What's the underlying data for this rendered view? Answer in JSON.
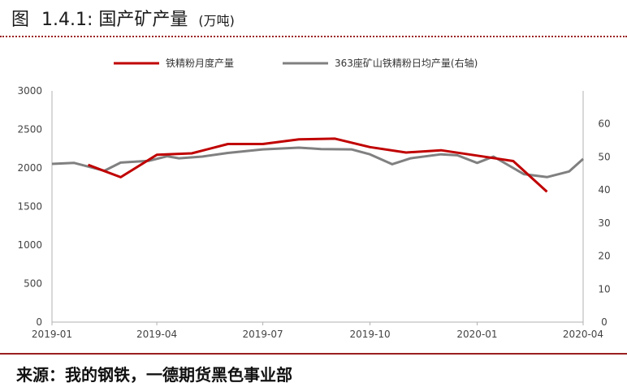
{
  "figure": {
    "label": "图",
    "number": "1.4.1:",
    "title": "国产矿产量",
    "unit": "(万吨)"
  },
  "source": "来源：我的钢铁，一德期货黑色事业部",
  "chart_data": {
    "type": "line",
    "x": [
      "2019-02",
      "2019-03",
      "2019-04",
      "2019-05",
      "2019-06",
      "2019-07",
      "2019-08",
      "2019-09",
      "2019-10",
      "2019-11",
      "2019-12",
      "2020-01",
      "2020-02",
      "2020-03"
    ],
    "x_ticks": [
      "2019-01",
      "2019-04",
      "2019-07",
      "2019-10",
      "2020-01",
      "2020-04"
    ],
    "x_range": [
      "2019-01-01",
      "2020-04-01"
    ],
    "y_left": {
      "min": 0,
      "max": 3000,
      "ticks": [
        0,
        500,
        1000,
        1500,
        2000,
        2500,
        3000
      ]
    },
    "y_right": {
      "min": 0,
      "max": 70,
      "ticks": [
        0,
        10,
        20,
        30,
        40,
        50,
        60
      ]
    },
    "series": [
      {
        "name": "铁精粉月度产量",
        "axis": "left",
        "color": "#c00000",
        "points": [
          [
            "2019-02-01",
            2040
          ],
          [
            "2019-03-01",
            1880
          ],
          [
            "2019-04-01",
            2170
          ],
          [
            "2019-05-01",
            2190
          ],
          [
            "2019-06-01",
            2310
          ],
          [
            "2019-07-01",
            2310
          ],
          [
            "2019-08-01",
            2370
          ],
          [
            "2019-09-01",
            2380
          ],
          [
            "2019-10-01",
            2270
          ],
          [
            "2019-11-01",
            2200
          ],
          [
            "2019-12-01",
            2230
          ],
          [
            "2020-01-01",
            2160
          ],
          [
            "2020-02-01",
            2090
          ],
          [
            "2020-03-01",
            1690
          ]
        ]
      },
      {
        "name": "363座矿山铁精粉日均产量(右轴)",
        "axis": "right",
        "color": "#808080",
        "points": [
          [
            "2019-01-01",
            47.9
          ],
          [
            "2019-01-20",
            48.2
          ],
          [
            "2019-02-15",
            45.8
          ],
          [
            "2019-03-01",
            48.3
          ],
          [
            "2019-03-25",
            48.8
          ],
          [
            "2019-04-10",
            50.2
          ],
          [
            "2019-04-20",
            49.6
          ],
          [
            "2019-05-10",
            50.1
          ],
          [
            "2019-06-01",
            51.2
          ],
          [
            "2019-07-01",
            52.3
          ],
          [
            "2019-08-01",
            52.8
          ],
          [
            "2019-08-20",
            52.4
          ],
          [
            "2019-09-15",
            52.3
          ],
          [
            "2019-10-01",
            50.8
          ],
          [
            "2019-10-20",
            47.8
          ],
          [
            "2019-11-05",
            49.6
          ],
          [
            "2019-12-01",
            50.8
          ],
          [
            "2019-12-15",
            50.5
          ],
          [
            "2020-01-01",
            48.2
          ],
          [
            "2020-01-15",
            50.1
          ],
          [
            "2020-02-10",
            44.8
          ],
          [
            "2020-03-01",
            43.9
          ],
          [
            "2020-03-20",
            45.6
          ],
          [
            "2020-04-01",
            49.4
          ]
        ]
      }
    ],
    "legend_position": "top",
    "grid": false
  }
}
